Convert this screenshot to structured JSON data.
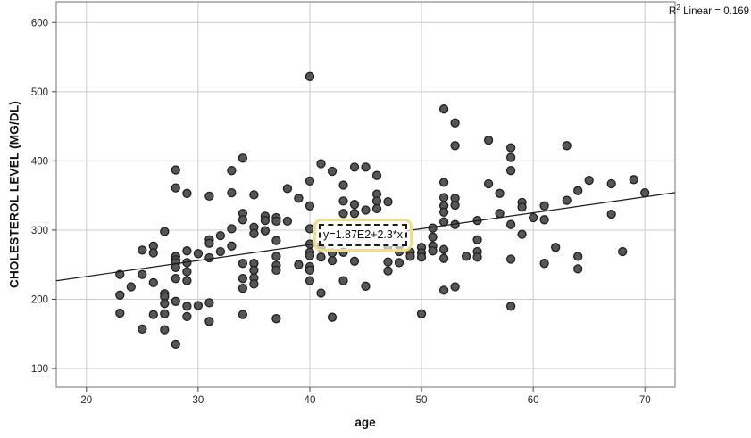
{
  "colors": {
    "grid": "#cbcbcb",
    "frame": "#8a8a8a",
    "tick_mark": "#444444",
    "point_fill": "#565656",
    "point_stroke": "#1f1f1f",
    "regression_line": "#1a1a1a",
    "highlight": "#f0dd86",
    "background": "#ffffff"
  },
  "annotations": {
    "r2_prefix": "R",
    "r2_sup": "2",
    "r2_rest": " Linear = 0.169"
  },
  "equation_label": {
    "text": "y=1.87E2+2.3*x"
  },
  "chart_data": {
    "type": "scatter",
    "title": "",
    "xlabel": "age",
    "ylabel": "CHOLESTEROL LEVEL (MG/DL)",
    "xlim": [
      17.3,
      72.7
    ],
    "ylim": [
      73,
      630
    ],
    "xticks": [
      20,
      30,
      40,
      50,
      60,
      70
    ],
    "yticks": [
      100,
      200,
      300,
      400,
      500,
      600
    ],
    "grid": true,
    "legend": "none",
    "regression": {
      "equation": "y=1.87E2+2.3*x",
      "intercept": 187,
      "slope": 2.3,
      "r2_label": "R2 Linear = 0.169",
      "r2": 0.169
    },
    "points": [
      [
        23,
        236
      ],
      [
        23,
        206
      ],
      [
        23,
        180
      ],
      [
        24,
        218
      ],
      [
        25,
        271
      ],
      [
        25,
        236
      ],
      [
        25,
        157
      ],
      [
        26,
        277
      ],
      [
        26,
        267
      ],
      [
        26,
        224
      ],
      [
        26,
        178
      ],
      [
        27,
        298
      ],
      [
        27,
        208
      ],
      [
        27,
        204
      ],
      [
        27,
        194
      ],
      [
        27,
        179
      ],
      [
        27,
        156
      ],
      [
        28,
        387
      ],
      [
        28,
        361
      ],
      [
        28,
        262
      ],
      [
        28,
        257
      ],
      [
        28,
        253
      ],
      [
        28,
        246
      ],
      [
        28,
        230
      ],
      [
        28,
        197
      ],
      [
        28,
        135
      ],
      [
        29,
        353
      ],
      [
        29,
        270
      ],
      [
        29,
        253
      ],
      [
        29,
        240
      ],
      [
        29,
        227
      ],
      [
        29,
        190
      ],
      [
        29,
        175
      ],
      [
        30,
        266
      ],
      [
        30,
        191
      ],
      [
        31,
        349
      ],
      [
        31,
        286
      ],
      [
        31,
        281
      ],
      [
        31,
        260
      ],
      [
        31,
        195
      ],
      [
        31,
        168
      ],
      [
        32,
        292
      ],
      [
        32,
        269
      ],
      [
        33,
        386
      ],
      [
        33,
        354
      ],
      [
        33,
        302
      ],
      [
        33,
        277
      ],
      [
        34,
        404
      ],
      [
        34,
        324
      ],
      [
        34,
        315
      ],
      [
        34,
        252
      ],
      [
        34,
        230
      ],
      [
        34,
        216
      ],
      [
        34,
        178
      ],
      [
        35,
        351
      ],
      [
        35,
        304
      ],
      [
        35,
        295
      ],
      [
        35,
        252
      ],
      [
        35,
        242
      ],
      [
        35,
        231
      ],
      [
        35,
        222
      ],
      [
        36,
        320
      ],
      [
        36,
        314
      ],
      [
        36,
        299
      ],
      [
        37,
        318
      ],
      [
        37,
        313
      ],
      [
        37,
        285
      ],
      [
        37,
        262
      ],
      [
        37,
        249
      ],
      [
        37,
        242
      ],
      [
        37,
        172
      ],
      [
        38,
        360
      ],
      [
        38,
        313
      ],
      [
        39,
        346
      ],
      [
        39,
        250
      ],
      [
        40,
        522
      ],
      [
        40,
        371
      ],
      [
        40,
        335
      ],
      [
        40,
        302
      ],
      [
        40,
        280
      ],
      [
        40,
        268
      ],
      [
        40,
        263
      ],
      [
        40,
        247
      ],
      [
        40,
        242
      ],
      [
        40,
        227
      ],
      [
        41,
        396
      ],
      [
        41,
        275
      ],
      [
        41,
        261
      ],
      [
        41,
        209
      ],
      [
        42,
        385
      ],
      [
        42,
        267
      ],
      [
        42,
        256
      ],
      [
        42,
        174
      ],
      [
        43,
        365
      ],
      [
        43,
        342
      ],
      [
        43,
        324
      ],
      [
        43,
        268
      ],
      [
        43,
        227
      ],
      [
        44,
        391
      ],
      [
        44,
        337
      ],
      [
        44,
        324
      ],
      [
        44,
        255
      ],
      [
        45,
        391
      ],
      [
        45,
        329
      ],
      [
        45,
        219
      ],
      [
        46,
        379
      ],
      [
        46,
        352
      ],
      [
        46,
        342
      ],
      [
        46,
        331
      ],
      [
        47,
        341
      ],
      [
        47,
        277
      ],
      [
        47,
        254
      ],
      [
        47,
        241
      ],
      [
        48,
        278
      ],
      [
        48,
        269
      ],
      [
        48,
        253
      ],
      [
        49,
        268
      ],
      [
        49,
        262
      ],
      [
        50,
        275
      ],
      [
        50,
        267
      ],
      [
        50,
        261
      ],
      [
        50,
        179
      ],
      [
        51,
        303
      ],
      [
        51,
        290
      ],
      [
        51,
        277
      ],
      [
        51,
        270
      ],
      [
        52,
        475
      ],
      [
        52,
        369
      ],
      [
        52,
        347
      ],
      [
        52,
        335
      ],
      [
        52,
        326
      ],
      [
        52,
        312
      ],
      [
        52,
        272
      ],
      [
        52,
        259
      ],
      [
        52,
        213
      ],
      [
        53,
        455
      ],
      [
        53,
        422
      ],
      [
        53,
        346
      ],
      [
        53,
        336
      ],
      [
        53,
        308
      ],
      [
        53,
        218
      ],
      [
        54,
        262
      ],
      [
        55,
        314
      ],
      [
        55,
        286
      ],
      [
        55,
        269
      ],
      [
        55,
        261
      ],
      [
        56,
        430
      ],
      [
        56,
        367
      ],
      [
        57,
        353
      ],
      [
        57,
        324
      ],
      [
        58,
        419
      ],
      [
        58,
        405
      ],
      [
        58,
        386
      ],
      [
        58,
        308
      ],
      [
        58,
        258
      ],
      [
        58,
        190
      ],
      [
        59,
        340
      ],
      [
        59,
        333
      ],
      [
        59,
        294
      ],
      [
        60,
        318
      ],
      [
        61,
        335
      ],
      [
        61,
        315
      ],
      [
        61,
        252
      ],
      [
        62,
        275
      ],
      [
        63,
        422
      ],
      [
        63,
        343
      ],
      [
        64,
        357
      ],
      [
        64,
        262
      ],
      [
        64,
        244
      ],
      [
        65,
        372
      ],
      [
        67,
        367
      ],
      [
        67,
        323
      ],
      [
        68,
        269
      ],
      [
        69,
        373
      ],
      [
        70,
        354
      ]
    ]
  }
}
